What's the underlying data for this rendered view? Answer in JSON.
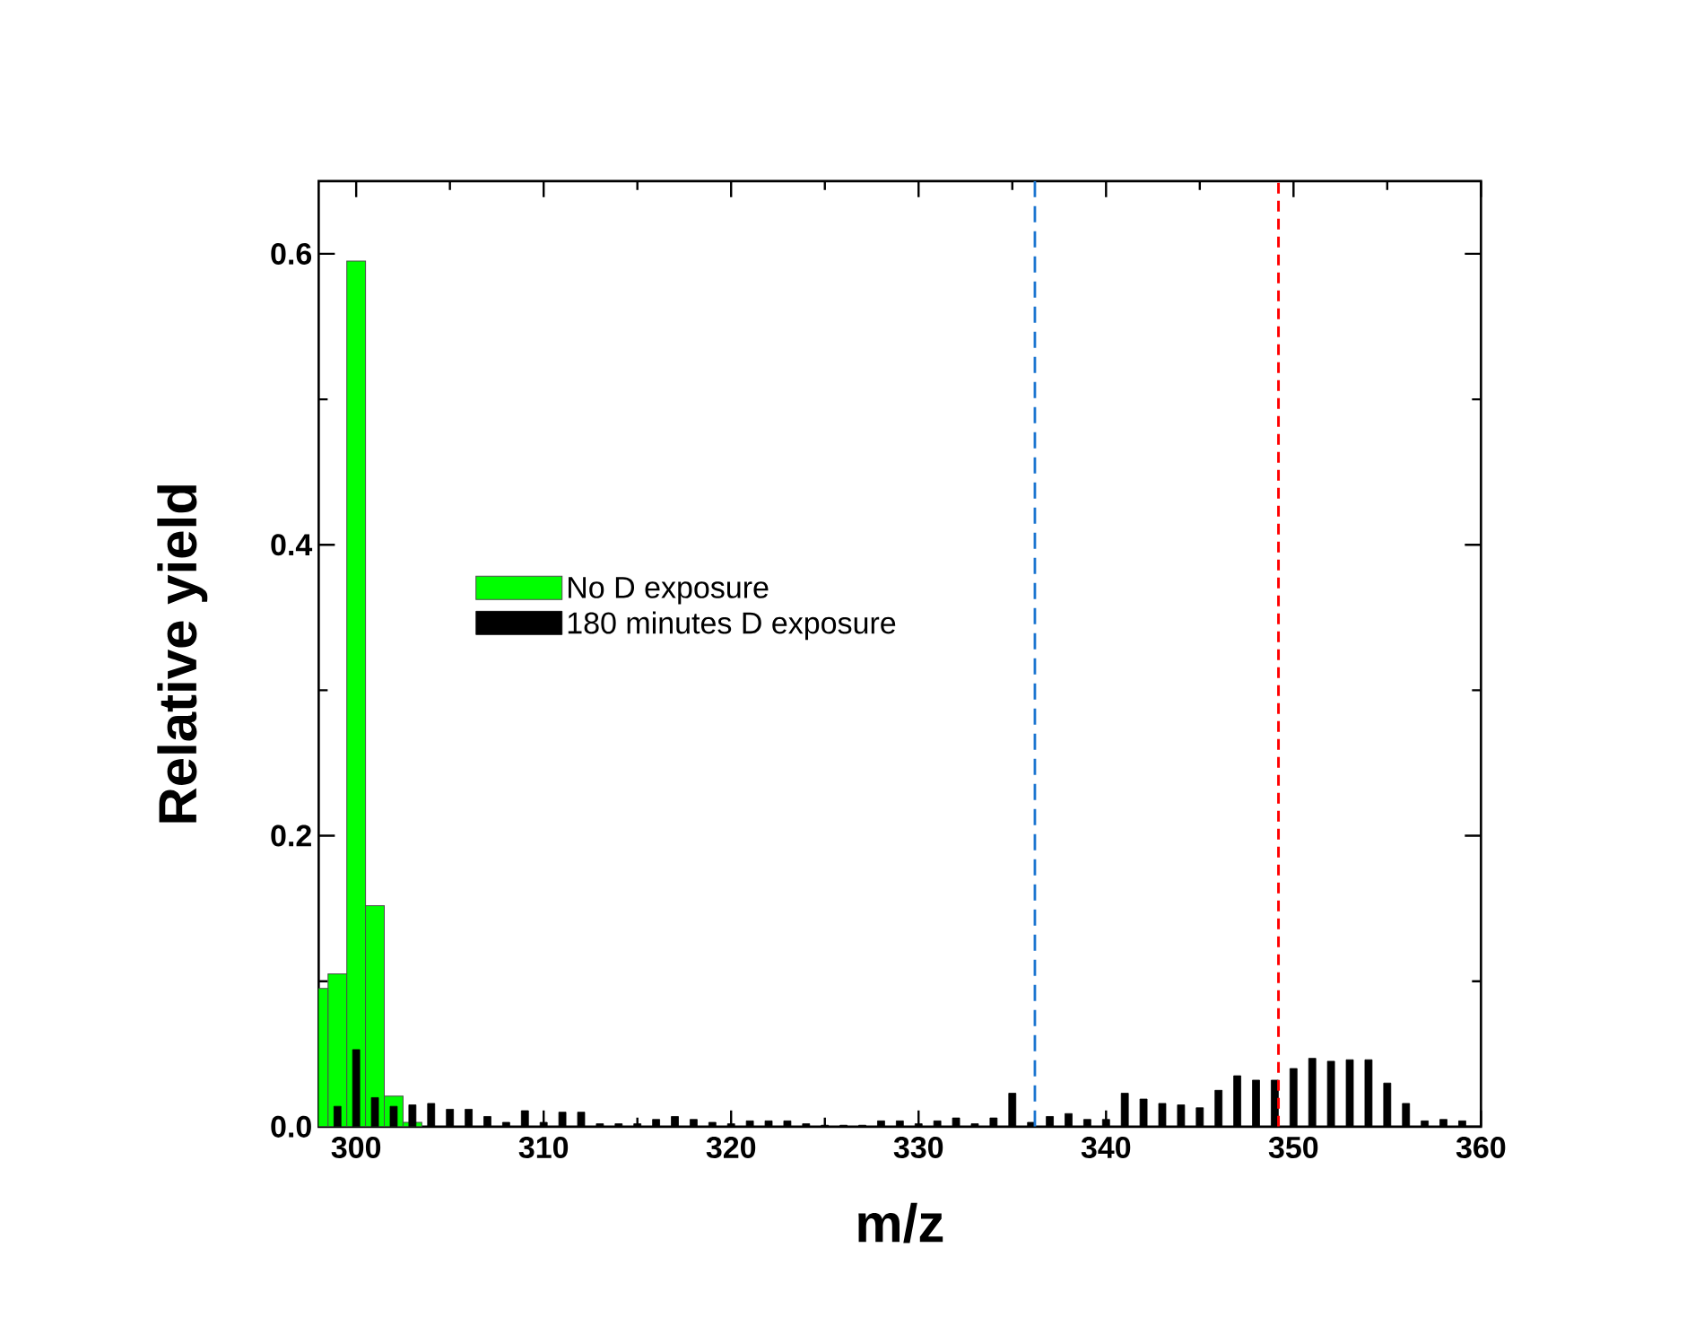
{
  "chart_data": {
    "type": "bar",
    "xlabel": "m/z",
    "ylabel": "Relative yield",
    "xlim": [
      298,
      360
    ],
    "xticks": [
      300,
      310,
      320,
      330,
      340,
      350,
      360
    ],
    "ylim": [
      0,
      0.65
    ],
    "yticks": [
      {
        "value": 0,
        "label": "0.0"
      },
      0.2,
      0.4,
      0.6
    ],
    "legend": "left",
    "grid": false,
    "series": [
      {
        "name": "No D exposure",
        "color": "#00ff00",
        "x": [
          298,
          299,
          300,
          301,
          302,
          303
        ],
        "values": [
          0.095,
          0.105,
          0.595,
          0.152,
          0.021,
          0.003
        ]
      },
      {
        "name": "180 minutes D exposure",
        "color": "#000000",
        "x": [
          299,
          300,
          301,
          302,
          303,
          304,
          305,
          306,
          307,
          308,
          309,
          310,
          311,
          312,
          313,
          314,
          315,
          316,
          317,
          318,
          319,
          320,
          321,
          322,
          323,
          324,
          325,
          326,
          327,
          328,
          329,
          330,
          331,
          332,
          333,
          334,
          335,
          336,
          337,
          338,
          339,
          340,
          341,
          342,
          343,
          344,
          345,
          346,
          347,
          348,
          349,
          350,
          351,
          352,
          353,
          354,
          355,
          356,
          357,
          358,
          359
        ],
        "values": [
          0.014,
          0.053,
          0.02,
          0.014,
          0.015,
          0.016,
          0.012,
          0.012,
          0.007,
          0.003,
          0.011,
          0.003,
          0.01,
          0.01,
          0.002,
          0.002,
          0.002,
          0.005,
          0.007,
          0.005,
          0.003,
          0.002,
          0.004,
          0.004,
          0.004,
          0.002,
          0.001,
          0.001,
          0.001,
          0.004,
          0.004,
          0.002,
          0.004,
          0.006,
          0.002,
          0.006,
          0.023,
          0.003,
          0.007,
          0.009,
          0.005,
          0.005,
          0.023,
          0.019,
          0.016,
          0.015,
          0.013,
          0.025,
          0.035,
          0.032,
          0.032,
          0.04,
          0.047,
          0.045,
          0.046,
          0.046,
          0.03,
          0.016,
          0.004,
          0.005,
          0.004
        ]
      }
    ],
    "ref_lines": [
      {
        "axis": "x",
        "value": 336.2,
        "color": "#1b75d0",
        "line_style": "dashed"
      },
      {
        "axis": "x",
        "value": 349.2,
        "color": "#ff0000",
        "line_style": "dashed"
      }
    ]
  }
}
